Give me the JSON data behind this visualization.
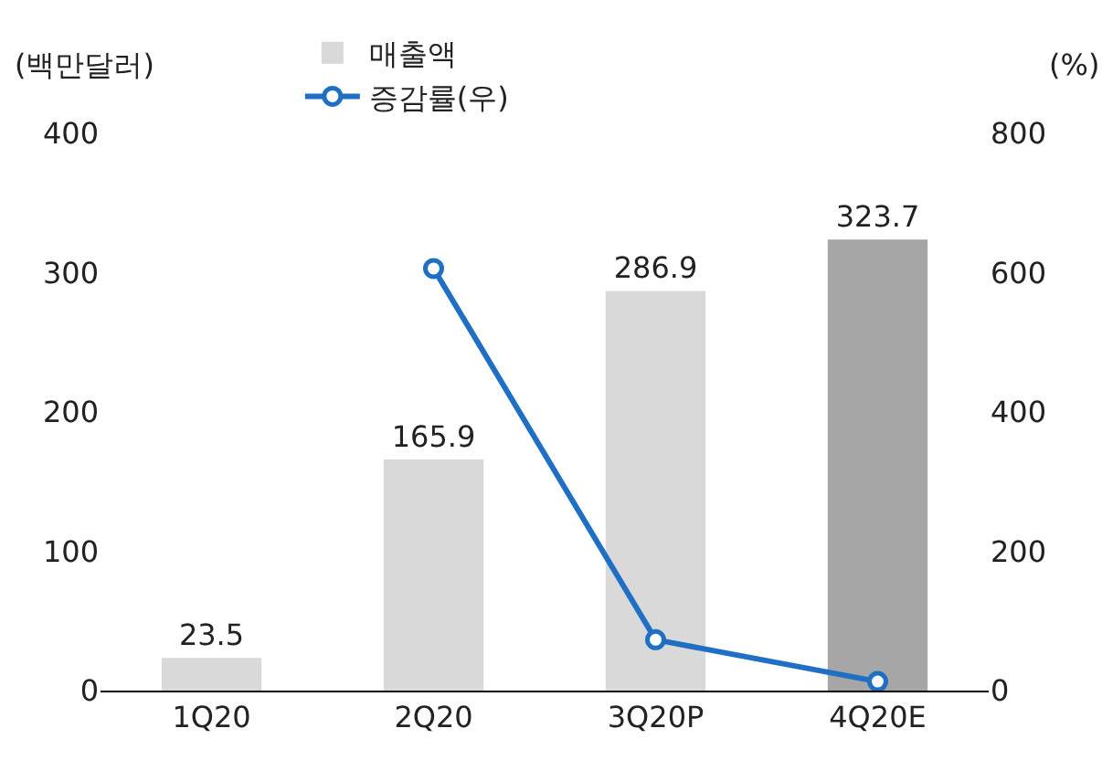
{
  "chart_data": {
    "type": "bar",
    "ylabel": "(백만달러)",
    "y2label": "(%)",
    "categories": [
      "1Q20",
      "2Q20",
      "3Q20P",
      "4Q20E"
    ],
    "series": [
      {
        "name": "매출액",
        "colors": [
          "#d9d9d9",
          "#d9d9d9",
          "#d9d9d9",
          "#a6a6a6"
        ],
        "values": [
          23.5,
          165.9,
          286.9,
          323.7
        ],
        "value_labels": [
          "23.5",
          "165.9",
          "286.9",
          "323.7"
        ]
      },
      {
        "name": "증감률(우)",
        "type": "line",
        "axis": "y2",
        "color": "#1f6fc4",
        "marker": "circle",
        "line_style": "solid",
        "values": [
          null,
          606,
          73,
          13
        ]
      }
    ],
    "ylim": [
      0,
      400
    ],
    "yticks": [
      0,
      100,
      200,
      300,
      400
    ],
    "y2lim": [
      0,
      800
    ],
    "y2ticks": [
      0,
      200,
      400,
      600,
      800
    ],
    "grid": false,
    "legend": "top"
  }
}
